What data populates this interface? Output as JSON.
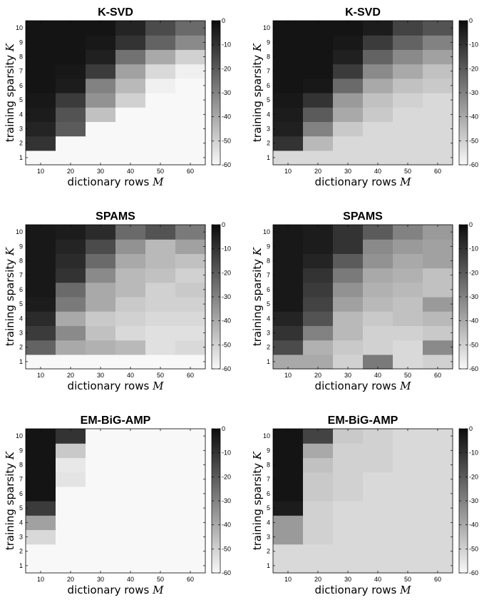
{
  "chart_data": [
    {
      "type": "heatmap",
      "title": "K-SVD",
      "xlabel_text": "dictionary rows ",
      "xlabel_var": "M",
      "ylabel_text": "training sparsity ",
      "ylabel_var": "K",
      "x": [
        10,
        20,
        30,
        40,
        50,
        60
      ],
      "y": [
        1,
        2,
        3,
        4,
        5,
        6,
        7,
        8,
        9,
        10
      ],
      "colorbar": {
        "min": -60,
        "max": 0,
        "ticks": [
          0,
          -10,
          -20,
          -30,
          -40,
          -50,
          -60
        ],
        "tick_labels": [
          "0",
          "-10",
          "-20",
          "-30",
          "-40",
          "-50",
          "-60"
        ]
      },
      "z": [
        [
          -60,
          -60,
          -60,
          -60,
          -60,
          -60
        ],
        [
          -10,
          -60,
          -60,
          -60,
          -60,
          -60
        ],
        [
          -6,
          -20,
          -60,
          -60,
          -60,
          -60
        ],
        [
          -4,
          -18,
          -46,
          -60,
          -60,
          -60
        ],
        [
          -3,
          -12,
          -34,
          -50,
          -60,
          -60
        ],
        [
          -2,
          -4,
          -30,
          -44,
          -58,
          -60
        ],
        [
          -2,
          -3,
          -12,
          -38,
          -52,
          -58
        ],
        [
          -2,
          -2,
          -5,
          -26,
          -40,
          -50
        ],
        [
          -2,
          -2,
          -3,
          -10,
          -22,
          -32
        ],
        [
          -2,
          -2,
          -2,
          -6,
          -16,
          -24
        ]
      ]
    },
    {
      "type": "heatmap",
      "title": "K-SVD",
      "xlabel_text": "dictionary rows ",
      "xlabel_var": "M",
      "ylabel_text": "training sparsity ",
      "ylabel_var": "K",
      "x": [
        10,
        20,
        30,
        40,
        50,
        60
      ],
      "y": [
        1,
        2,
        3,
        4,
        5,
        6,
        7,
        8,
        9,
        10
      ],
      "colorbar": {
        "min": -60,
        "max": 0,
        "ticks": [
          0,
          -10,
          -20,
          -30,
          -40,
          -50,
          -60
        ],
        "tick_labels": [
          "0",
          "-10",
          "-20",
          "-30",
          "-40",
          "-50",
          "-60"
        ]
      },
      "z": [
        [
          -52,
          -52,
          -52,
          -52,
          -52,
          -52
        ],
        [
          -10,
          -44,
          -52,
          -52,
          -52,
          -52
        ],
        [
          -5,
          -30,
          -48,
          -52,
          -52,
          -52
        ],
        [
          -4,
          -20,
          -40,
          -48,
          -52,
          -52
        ],
        [
          -3,
          -10,
          -36,
          -46,
          -50,
          -52
        ],
        [
          -2,
          -3,
          -24,
          -40,
          -46,
          -48
        ],
        [
          -2,
          -2,
          -12,
          -32,
          -40,
          -46
        ],
        [
          -2,
          -2,
          -5,
          -22,
          -32,
          -38
        ],
        [
          -2,
          -2,
          -3,
          -12,
          -22,
          -30
        ],
        [
          -2,
          -2,
          -2,
          -4,
          -14,
          -18
        ]
      ]
    },
    {
      "type": "heatmap",
      "title": "SPAMS",
      "xlabel_text": "dictionary rows ",
      "xlabel_var": "M",
      "ylabel_text": "training sparsity ",
      "ylabel_var": "K",
      "x": [
        10,
        20,
        30,
        40,
        50,
        60
      ],
      "y": [
        1,
        2,
        3,
        4,
        5,
        6,
        7,
        8,
        9,
        10
      ],
      "colorbar": {
        "min": -60,
        "max": 0,
        "ticks": [
          0,
          -10,
          -20,
          -30,
          -40,
          -50,
          -60
        ],
        "tick_labels": [
          "0",
          "-10",
          "-20",
          "-30",
          "-40",
          "-50",
          "-60"
        ]
      },
      "z": [
        [
          -60,
          -60,
          -60,
          -60,
          -60,
          -60
        ],
        [
          -22,
          -40,
          -42,
          -44,
          -54,
          -52
        ],
        [
          -12,
          -32,
          -46,
          -52,
          -54,
          -54
        ],
        [
          -8,
          -40,
          -48,
          -50,
          -52,
          -52
        ],
        [
          -4,
          -28,
          -40,
          -48,
          -50,
          -50
        ],
        [
          -3,
          -24,
          -40,
          -44,
          -50,
          -48
        ],
        [
          -3,
          -10,
          -32,
          -44,
          -46,
          -50
        ],
        [
          -3,
          -8,
          -24,
          -40,
          -44,
          -46
        ],
        [
          -3,
          -6,
          -16,
          -34,
          -44,
          -38
        ],
        [
          -3,
          -4,
          -8,
          -24,
          -18,
          -28
        ]
      ]
    },
    {
      "type": "heatmap",
      "title": "SPAMS",
      "xlabel_text": "dictionary rows ",
      "xlabel_var": "M",
      "ylabel_text": "training sparsity ",
      "ylabel_var": "K",
      "x": [
        10,
        20,
        30,
        40,
        50,
        60
      ],
      "y": [
        1,
        2,
        3,
        4,
        5,
        6,
        7,
        8,
        9,
        10
      ],
      "colorbar": {
        "min": -60,
        "max": 0,
        "ticks": [
          0,
          -10,
          -20,
          -30,
          -40,
          -50,
          -60
        ],
        "tick_labels": [
          "0",
          "-10",
          "-20",
          "-30",
          "-40",
          "-50",
          "-60"
        ]
      },
      "z": [
        [
          -40,
          -40,
          -50,
          -28,
          -52,
          -50
        ],
        [
          -16,
          -42,
          -48,
          -50,
          -52,
          -32
        ],
        [
          -10,
          -30,
          -44,
          -50,
          -50,
          -48
        ],
        [
          -6,
          -18,
          -44,
          -48,
          -46,
          -44
        ],
        [
          -3,
          -14,
          -38,
          -44,
          -46,
          -36
        ],
        [
          -3,
          -12,
          -34,
          -42,
          -44,
          -46
        ],
        [
          -3,
          -10,
          -28,
          -40,
          -42,
          -46
        ],
        [
          -3,
          -6,
          -20,
          -34,
          -40,
          -38
        ],
        [
          -3,
          -4,
          -10,
          -32,
          -36,
          -38
        ],
        [
          -3,
          -4,
          -10,
          -20,
          -30,
          -36
        ]
      ]
    },
    {
      "type": "heatmap",
      "title": "EM-BiG-AMP",
      "xlabel_text": "dictionary rows ",
      "xlabel_var": "M",
      "ylabel_text": "training sparsity ",
      "ylabel_var": "K",
      "x": [
        10,
        20,
        30,
        40,
        50,
        60
      ],
      "y": [
        1,
        2,
        3,
        4,
        5,
        6,
        7,
        8,
        9,
        10
      ],
      "colorbar": {
        "min": -60,
        "max": 0,
        "ticks": [
          0,
          -10,
          -20,
          -30,
          -40,
          -50,
          -60
        ],
        "tick_labels": [
          "0",
          "-10",
          "-20",
          "-30",
          "-40",
          "-50",
          "-60"
        ]
      },
      "z": [
        [
          -60,
          -60,
          -60,
          -60,
          -60,
          -60
        ],
        [
          -60,
          -60,
          -60,
          -60,
          -60,
          -60
        ],
        [
          -52,
          -60,
          -60,
          -60,
          -60,
          -60
        ],
        [
          -38,
          -60,
          -60,
          -60,
          -60,
          -60
        ],
        [
          -12,
          -60,
          -60,
          -60,
          -60,
          -60
        ],
        [
          -2,
          -60,
          -60,
          -60,
          -60,
          -60
        ],
        [
          -2,
          -55,
          -60,
          -60,
          -60,
          -60
        ],
        [
          -2,
          -56,
          -60,
          -60,
          -60,
          -60
        ],
        [
          -2,
          -48,
          -60,
          -60,
          -60,
          -60
        ],
        [
          -2,
          -10,
          -60,
          -60,
          -60,
          -60
        ]
      ]
    },
    {
      "type": "heatmap",
      "title": "EM-BiG-AMP",
      "xlabel_text": "dictionary rows ",
      "xlabel_var": "M",
      "ylabel_text": "training sparsity ",
      "ylabel_var": "K",
      "x": [
        10,
        20,
        30,
        40,
        50,
        60
      ],
      "y": [
        1,
        2,
        3,
        4,
        5,
        6,
        7,
        8,
        9,
        10
      ],
      "colorbar": {
        "min": -60,
        "max": 0,
        "ticks": [
          0,
          -10,
          -20,
          -30,
          -40,
          -50,
          -60
        ],
        "tick_labels": [
          "0",
          "-10",
          "-20",
          "-30",
          "-40",
          "-50",
          "-60"
        ]
      },
      "z": [
        [
          -52,
          -52,
          -52,
          -52,
          -52,
          -52
        ],
        [
          -52,
          -52,
          -52,
          -52,
          -52,
          -52
        ],
        [
          -36,
          -50,
          -52,
          -52,
          -52,
          -52
        ],
        [
          -36,
          -50,
          -52,
          -52,
          -52,
          -52
        ],
        [
          -4,
          -50,
          -52,
          -52,
          -52,
          -52
        ],
        [
          -2,
          -48,
          -50,
          -52,
          -52,
          -52
        ],
        [
          -2,
          -48,
          -50,
          -52,
          -52,
          -52
        ],
        [
          -2,
          -46,
          -50,
          -50,
          -52,
          -52
        ],
        [
          -2,
          -40,
          -50,
          -50,
          -52,
          -52
        ],
        [
          -2,
          -14,
          -48,
          -50,
          -52,
          -52
        ]
      ]
    }
  ]
}
